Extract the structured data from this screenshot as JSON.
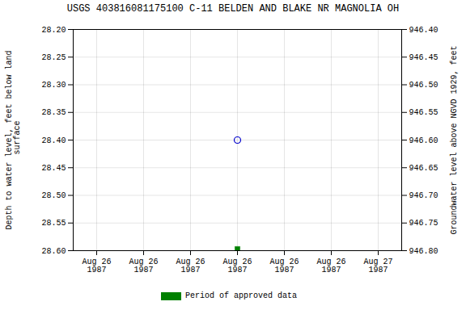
{
  "chart_data": {
    "type": "scatter",
    "title": "USGS 403816081175100 C-11 BELDEN AND BLAKE NR MAGNOLIA OH",
    "ylabel": "Depth to water level, feet below land\n surface",
    "y2label": "Groundwater level above NGVD 1929, feet",
    "categories": [
      "Aug 26\n1987",
      "Aug 26\n1987",
      "Aug 26\n1987",
      "Aug 26\n1987",
      "Aug 26\n1987",
      "Aug 26\n1987",
      "Aug 27\n1987"
    ],
    "series": [
      {
        "color": "#0000CC",
        "marker": "open_circle",
        "values": [
          null,
          null,
          null,
          28.4,
          null,
          null,
          null
        ]
      },
      {
        "name": "Period of approved data",
        "color": "#008000",
        "marker": "square",
        "values": [
          null,
          null,
          null,
          28.597,
          null,
          null,
          null
        ]
      }
    ],
    "ylim": [
      28.6,
      28.2
    ],
    "yticks": [
      {
        "value": 28.2,
        "label": "28.20"
      },
      28.25,
      {
        "value": 28.3,
        "label": "28.30"
      },
      28.35,
      {
        "value": 28.4,
        "label": "28.40"
      },
      28.45,
      {
        "value": 28.5,
        "label": "28.50"
      },
      28.55,
      {
        "value": 28.6,
        "label": "28.60"
      }
    ],
    "y2lim": [
      946.8,
      946.4
    ],
    "y2ticks": [
      {
        "value": 946.8,
        "label": "946.80"
      },
      946.75,
      {
        "value": 946.7,
        "label": "946.70"
      },
      946.65,
      {
        "value": 946.6,
        "label": "946.60"
      },
      946.55,
      {
        "value": 946.5,
        "label": "946.50"
      },
      946.45,
      {
        "value": 946.4,
        "label": "946.40"
      }
    ],
    "grid": true,
    "legend": "bottom"
  }
}
